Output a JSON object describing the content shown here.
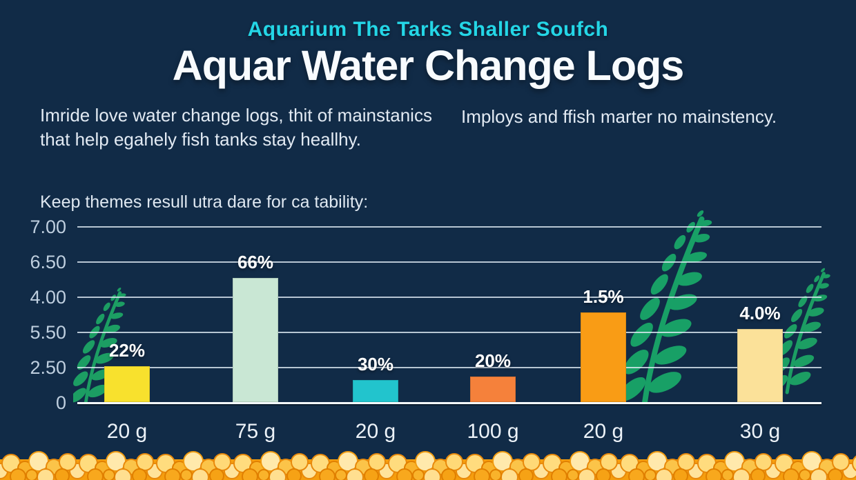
{
  "theme": {
    "bg": "#112b47",
    "accent": "#24d6e6",
    "plant": "#1c9e63",
    "gravel_base": "#f59e0e"
  },
  "header": {
    "eyebrow": "Aquarium The Tarks Shaller Soufch",
    "title": "Aquar Water Change Logs"
  },
  "intro": {
    "left_lines": [
      "Imride love water change logs, thit of mainstanics",
      "that help egahely fish tanks stay heallhy."
    ],
    "right": "Imploys and ffish marter no mainstency."
  },
  "chart_data": {
    "type": "bar",
    "title": "Keep themes resull utra dare for ca tability:",
    "categories": [
      "20 g",
      "75 g",
      "20 g",
      "100 g",
      "20 g",
      "30 g"
    ],
    "values": [
      1.43,
      4.94,
      0.88,
      1.02,
      3.57,
      2.91
    ],
    "bar_labels": [
      "22%",
      "66%",
      "30%",
      "20%",
      "1.5%",
      "4.0%"
    ],
    "bar_colors": [
      "#f8e12d",
      "#c9e7d4",
      "#22c4cd",
      "#f5813b",
      "#f99c15",
      "#fbe199"
    ],
    "y_ticks": [
      "7.00",
      "6.50",
      "4.00",
      "5.50",
      "2.50",
      "0"
    ],
    "ylim": [
      0,
      7
    ],
    "xlabel": "",
    "ylabel": "",
    "grid": true,
    "legend": false
  }
}
